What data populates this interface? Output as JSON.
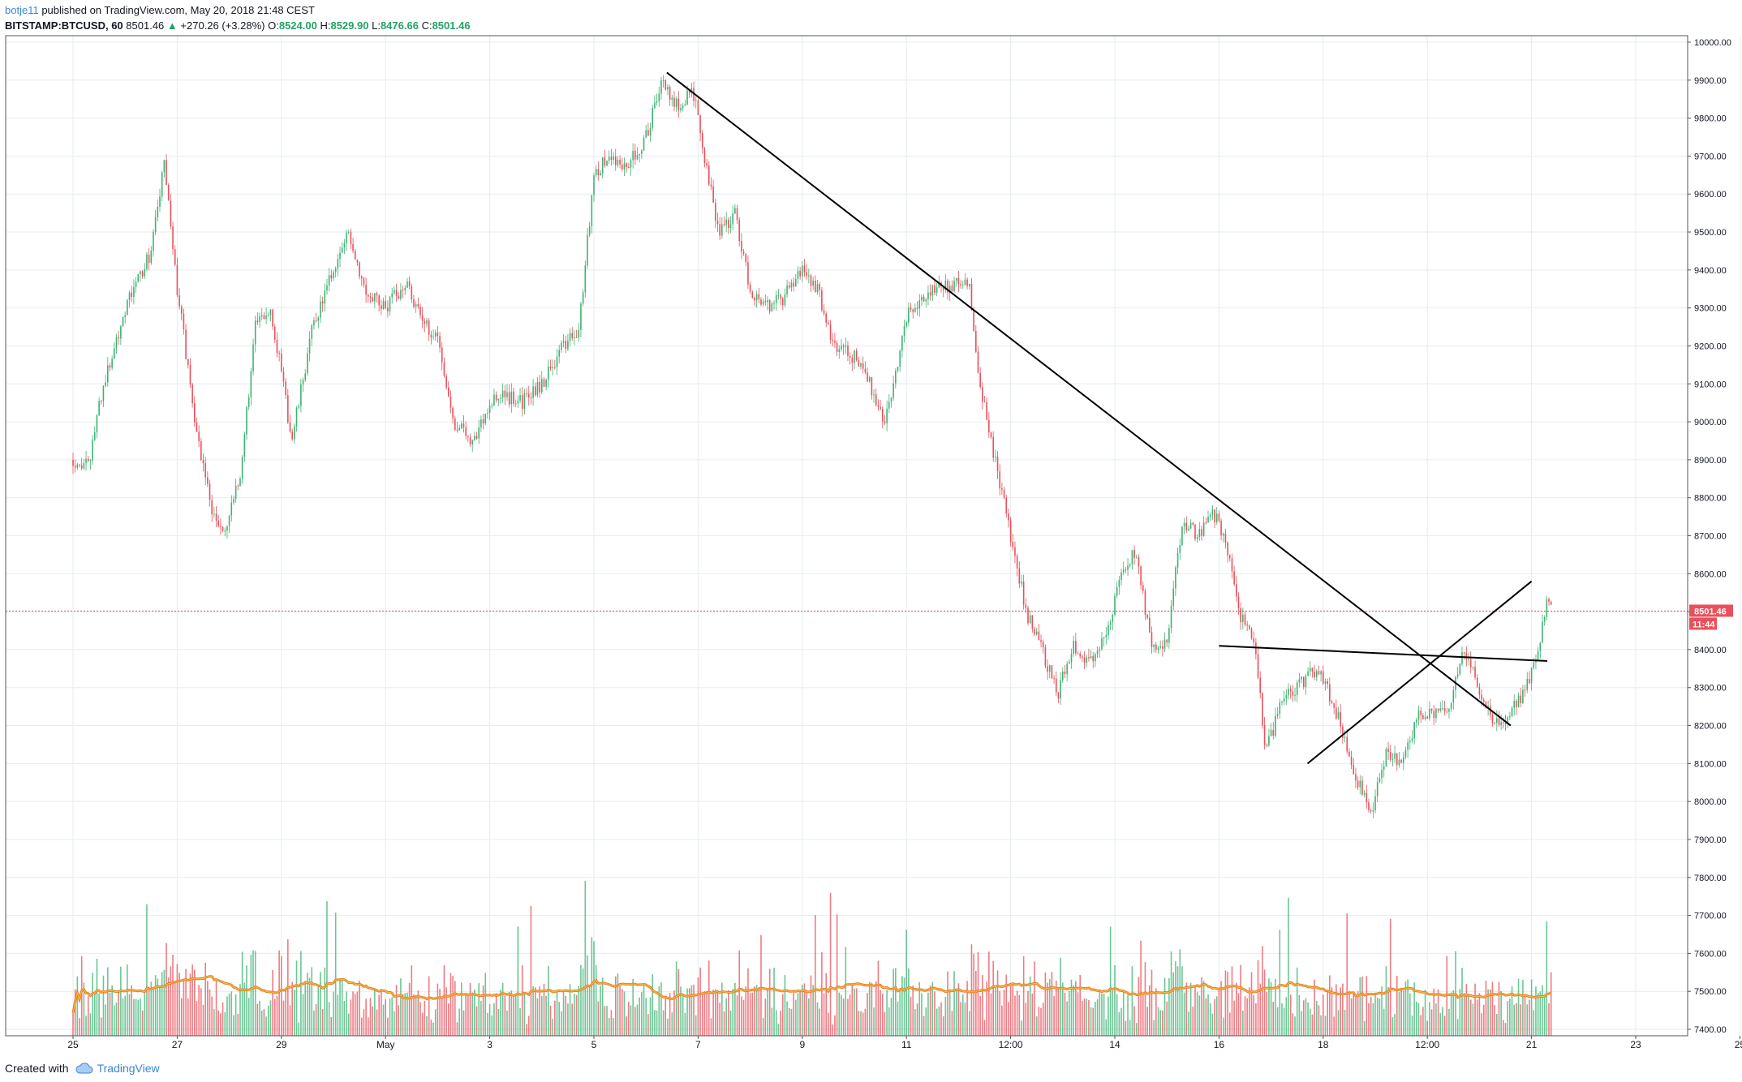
{
  "header": {
    "author": "botje11",
    "published": "published on TradingView.com, May 20, 2018 21:48 CEST",
    "symbol": "BITSTAMP:BTCUSD, 60",
    "last": "8501.46",
    "change_arrow": "▲",
    "change": "+270.26 (+3.28%)",
    "o_label": "O:",
    "o_value": "8524.00",
    "h_label": "H:",
    "h_value": "8529.90",
    "l_label": "L:",
    "l_value": "8476.66",
    "c_label": "C:",
    "c_value": "8501.46"
  },
  "footer": {
    "created_with": "Created with",
    "brand": "TradingView",
    "brand_icon": "cloud-logo-icon"
  },
  "colors": {
    "up": "#3cb371",
    "down": "#e8505b",
    "grid": "#e6ecef",
    "price_line": "#e8505b",
    "ma_outer": "#e67e22",
    "ma_inner": "#f5c04a"
  },
  "chart_data": {
    "type": "candlestick",
    "symbol": "BITSTAMP:BTCUSD",
    "interval": "60",
    "x_tick_labels": [
      "25",
      "27",
      "29",
      "May",
      "3",
      "5",
      "7",
      "9",
      "11",
      "12:00",
      "14",
      "16",
      "18",
      "12:00",
      "21",
      "23",
      "25"
    ],
    "y_tick_labels": [
      "10000.00",
      "9900.00",
      "9800.00",
      "9700.00",
      "9600.00",
      "9500.00",
      "9400.00",
      "9300.00",
      "9200.00",
      "9100.00",
      "9000.00",
      "8900.00",
      "8800.00",
      "8700.00",
      "8600.00",
      "8500.00",
      "8400.00",
      "8300.00",
      "8200.00",
      "8100.00",
      "8000.00",
      "7900.00",
      "7800.00",
      "7700.00",
      "7600.00",
      "7500.00",
      "7400.00"
    ],
    "ylim": [
      7400,
      10020
    ],
    "grid": true,
    "last_price": {
      "value": 8501.46,
      "label": "8501.46",
      "countdown": "11:44"
    },
    "price_path": [
      {
        "x": 0.0,
        "y": 8900
      },
      {
        "x": 0.3,
        "y": 8880
      },
      {
        "x": 0.5,
        "y": 9050
      },
      {
        "x": 1.0,
        "y": 9300
      },
      {
        "x": 1.5,
        "y": 9450
      },
      {
        "x": 1.75,
        "y": 9680
      },
      {
        "x": 2.0,
        "y": 9350
      },
      {
        "x": 2.2,
        "y": 9150
      },
      {
        "x": 2.4,
        "y": 8950
      },
      {
        "x": 2.7,
        "y": 8750
      },
      {
        "x": 2.9,
        "y": 8700
      },
      {
        "x": 3.2,
        "y": 8850
      },
      {
        "x": 3.5,
        "y": 9250
      },
      {
        "x": 3.8,
        "y": 9300
      },
      {
        "x": 4.2,
        "y": 8950
      },
      {
        "x": 4.6,
        "y": 9250
      },
      {
        "x": 5.0,
        "y": 9400
      },
      {
        "x": 5.3,
        "y": 9500
      },
      {
        "x": 5.6,
        "y": 9350
      },
      {
        "x": 6.0,
        "y": 9300
      },
      {
        "x": 6.4,
        "y": 9370
      },
      {
        "x": 6.7,
        "y": 9260
      },
      {
        "x": 7.0,
        "y": 9230
      },
      {
        "x": 7.3,
        "y": 9000
      },
      {
        "x": 7.7,
        "y": 8950
      },
      {
        "x": 8.0,
        "y": 9050
      },
      {
        "x": 8.3,
        "y": 9070
      },
      {
        "x": 8.6,
        "y": 9050
      },
      {
        "x": 9.0,
        "y": 9100
      },
      {
        "x": 9.4,
        "y": 9200
      },
      {
        "x": 9.7,
        "y": 9230
      },
      {
        "x": 10.0,
        "y": 9650
      },
      {
        "x": 10.3,
        "y": 9700
      },
      {
        "x": 10.6,
        "y": 9670
      },
      {
        "x": 11.0,
        "y": 9750
      },
      {
        "x": 11.3,
        "y": 9900
      },
      {
        "x": 11.6,
        "y": 9830
      },
      {
        "x": 11.9,
        "y": 9880
      },
      {
        "x": 12.1,
        "y": 9700
      },
      {
        "x": 12.4,
        "y": 9500
      },
      {
        "x": 12.7,
        "y": 9550
      },
      {
        "x": 13.0,
        "y": 9350
      },
      {
        "x": 13.3,
        "y": 9300
      },
      {
        "x": 13.6,
        "y": 9320
      },
      {
        "x": 14.0,
        "y": 9400
      },
      {
        "x": 14.3,
        "y": 9350
      },
      {
        "x": 14.6,
        "y": 9200
      },
      {
        "x": 15.0,
        "y": 9170
      },
      {
        "x": 15.3,
        "y": 9100
      },
      {
        "x": 15.6,
        "y": 9000
      },
      {
        "x": 16.0,
        "y": 9280
      },
      {
        "x": 16.3,
        "y": 9330
      },
      {
        "x": 16.6,
        "y": 9360
      },
      {
        "x": 16.9,
        "y": 9360
      },
      {
        "x": 17.2,
        "y": 9370
      },
      {
        "x": 17.4,
        "y": 9100
      },
      {
        "x": 17.7,
        "y": 8900
      },
      {
        "x": 18.0,
        "y": 8700
      },
      {
        "x": 18.3,
        "y": 8500
      },
      {
        "x": 18.6,
        "y": 8400
      },
      {
        "x": 18.9,
        "y": 8280
      },
      {
        "x": 19.2,
        "y": 8420
      },
      {
        "x": 19.5,
        "y": 8360
      },
      {
        "x": 19.8,
        "y": 8430
      },
      {
        "x": 20.1,
        "y": 8580
      },
      {
        "x": 20.4,
        "y": 8660
      },
      {
        "x": 20.7,
        "y": 8400
      },
      {
        "x": 21.0,
        "y": 8420
      },
      {
        "x": 21.3,
        "y": 8740
      },
      {
        "x": 21.6,
        "y": 8700
      },
      {
        "x": 21.9,
        "y": 8760
      },
      {
        "x": 22.1,
        "y": 8700
      },
      {
        "x": 22.4,
        "y": 8490
      },
      {
        "x": 22.7,
        "y": 8400
      },
      {
        "x": 22.9,
        "y": 8130
      },
      {
        "x": 23.2,
        "y": 8260
      },
      {
        "x": 23.5,
        "y": 8300
      },
      {
        "x": 23.8,
        "y": 8350
      },
      {
        "x": 24.0,
        "y": 8320
      },
      {
        "x": 24.3,
        "y": 8220
      },
      {
        "x": 24.6,
        "y": 8080
      },
      {
        "x": 24.9,
        "y": 7960
      },
      {
        "x": 25.2,
        "y": 8120
      },
      {
        "x": 25.5,
        "y": 8100
      },
      {
        "x": 25.8,
        "y": 8220
      },
      {
        "x": 26.1,
        "y": 8230
      },
      {
        "x": 26.4,
        "y": 8240
      },
      {
        "x": 26.7,
        "y": 8390
      },
      {
        "x": 27.0,
        "y": 8300
      },
      {
        "x": 27.3,
        "y": 8200
      },
      {
        "x": 27.6,
        "y": 8230
      },
      {
        "x": 27.9,
        "y": 8300
      },
      {
        "x": 28.1,
        "y": 8380
      },
      {
        "x": 28.3,
        "y": 8520
      },
      {
        "x": 28.4,
        "y": 8501
      }
    ],
    "trendlines": [
      {
        "x1": 11.4,
        "y1": 9920,
        "x2": 27.6,
        "y2": 8200
      },
      {
        "x1": 22.0,
        "y1": 8410,
        "x2": 28.3,
        "y2": 8370
      },
      {
        "x1": 23.7,
        "y1": 8100,
        "x2": 28.0,
        "y2": 8580
      }
    ],
    "volume": {
      "has_series": true,
      "moving_average_lines": 2
    }
  }
}
